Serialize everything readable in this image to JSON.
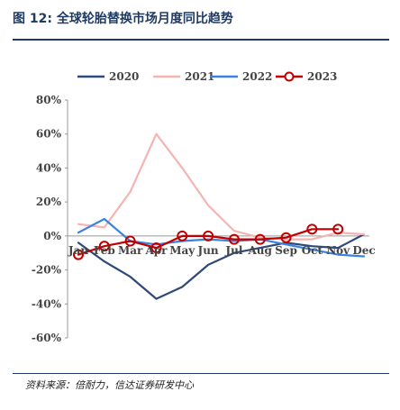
{
  "header": {
    "title": "图 12:  全球轮胎替换市场月度同比趋势"
  },
  "footer": {
    "source": "资料来源：倍耐力，信达证券研发中心"
  },
  "chart_data": {
    "type": "line",
    "title": "",
    "xlabel": "",
    "ylabel": "",
    "categories": [
      "Jan",
      "Feb",
      "Mar",
      "Apr",
      "May",
      "Jun",
      "Jul",
      "Aug",
      "Sep",
      "Oct",
      "Nov",
      "Dec"
    ],
    "ylim": [
      -60,
      80
    ],
    "yticks": [
      -60,
      -40,
      -20,
      0,
      20,
      40,
      60,
      80
    ],
    "ytick_labels": [
      "-60%",
      "-40%",
      "-20%",
      "0%",
      "20%",
      "40%",
      "60%",
      "80%"
    ],
    "legend_position": "top",
    "grid": false,
    "series": [
      {
        "name": "2020",
        "color": "#2e4a7a",
        "marker": "none",
        "values": [
          -4,
          -15,
          -24,
          -37,
          -30,
          -17,
          -10,
          -7,
          -4,
          -6,
          -7,
          1
        ]
      },
      {
        "name": "2021",
        "color": "#f4b4b2",
        "marker": "none",
        "values": [
          7,
          5,
          26,
          60,
          40,
          18,
          3,
          -1,
          -2,
          -2,
          2,
          1
        ]
      },
      {
        "name": "2022",
        "color": "#3b82e0",
        "marker": "none",
        "values": [
          2,
          10,
          -3,
          -5,
          -3,
          -2,
          -3,
          -2,
          -5,
          -8,
          -11,
          -12
        ]
      },
      {
        "name": "2023",
        "color": "#c00000",
        "marker": "circle",
        "values": [
          -11,
          -6,
          -3,
          -7,
          0,
          0,
          -2,
          -2,
          -1,
          4,
          4,
          null
        ]
      }
    ]
  }
}
